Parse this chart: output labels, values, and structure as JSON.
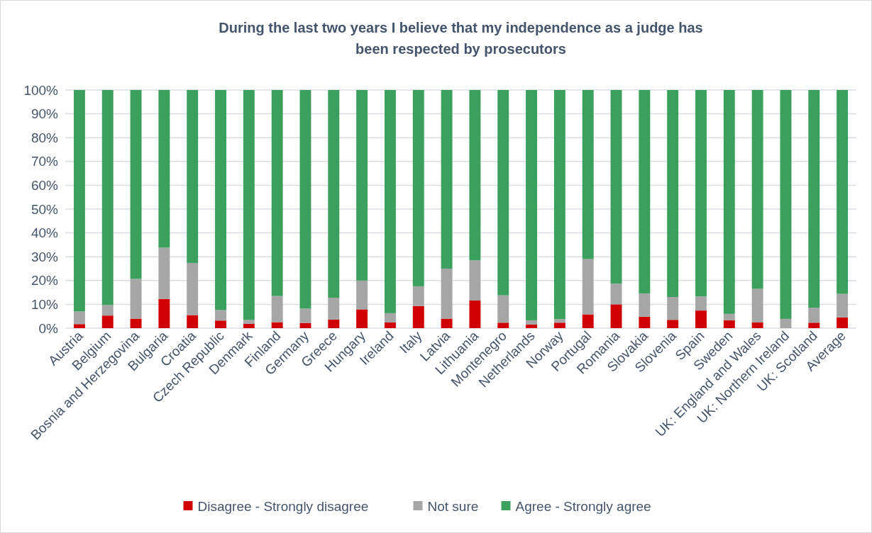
{
  "chart_data": {
    "type": "bar",
    "stacked": true,
    "title": "During the last two years I believe that my independence as a judge has been respected by prosecutors",
    "categories": [
      "Austria",
      "Belgium",
      "Bosnia and Herzegovina",
      "Bulgaria",
      "Croatia",
      "Czech Republic",
      "Denmark",
      "Finland",
      "Germany",
      "Greece",
      "Hungary",
      "Ireland",
      "Italy",
      "Latvia",
      "Lithuania",
      "Montenegro",
      "Netherlands",
      "Norway",
      "Portugal",
      "Romania",
      "Slovakia",
      "Slovenia",
      "Spain",
      "Sweden",
      "UK: England and Wales",
      "UK: Northern Ireland",
      "UK: Scotland",
      "Average"
    ],
    "series": [
      {
        "name": "Disagree - Strongly disagree",
        "color": "#d00000",
        "values": [
          1.7,
          5.3,
          4,
          12.3,
          5.5,
          3.2,
          1.8,
          2.5,
          2.2,
          3.6,
          7.9,
          2.4,
          9.3,
          4,
          11.6,
          2.3,
          1.5,
          2.3,
          5.8,
          10,
          4.8,
          3.5,
          7.4,
          3.3,
          2.4,
          0,
          2.3,
          4.5
        ]
      },
      {
        "name": "Not sure",
        "color": "#a6a6a6",
        "values": [
          5.3,
          4.4,
          16.7,
          21.5,
          21.9,
          4.4,
          1.7,
          11,
          6,
          9.2,
          12.1,
          3.9,
          8.3,
          21,
          16.9,
          11.5,
          1.8,
          1.5,
          23.2,
          8.7,
          9.8,
          9.6,
          5.9,
          2.7,
          14.1,
          3.9,
          6.3,
          9.9
        ]
      },
      {
        "name": "Agree - Strongly agree",
        "color": "#3ba05e",
        "values": [
          93,
          90.3,
          79.3,
          66.2,
          72.6,
          92.4,
          96.5,
          86.5,
          91.8,
          87.2,
          80,
          93.7,
          82.4,
          75,
          71.5,
          86.2,
          96.7,
          96.2,
          71,
          81.3,
          85.4,
          86.9,
          86.7,
          94,
          83.5,
          96.1,
          91.4,
          85.6
        ]
      }
    ],
    "ylim": [
      0,
      100
    ],
    "yticks": [
      {
        "value": 0,
        "label": "0%"
      },
      {
        "value": 10,
        "label": "10%"
      },
      {
        "value": 20,
        "label": "20%"
      },
      {
        "value": 30,
        "label": "30%"
      },
      {
        "value": 40,
        "label": "40%"
      },
      {
        "value": 50,
        "label": "50%"
      },
      {
        "value": 60,
        "label": "60%"
      },
      {
        "value": 70,
        "label": "70%"
      },
      {
        "value": 80,
        "label": "80%"
      },
      {
        "value": 90,
        "label": "90%"
      },
      {
        "value": 100,
        "label": "100%"
      }
    ],
    "grid": "y",
    "legend": "bottom"
  }
}
